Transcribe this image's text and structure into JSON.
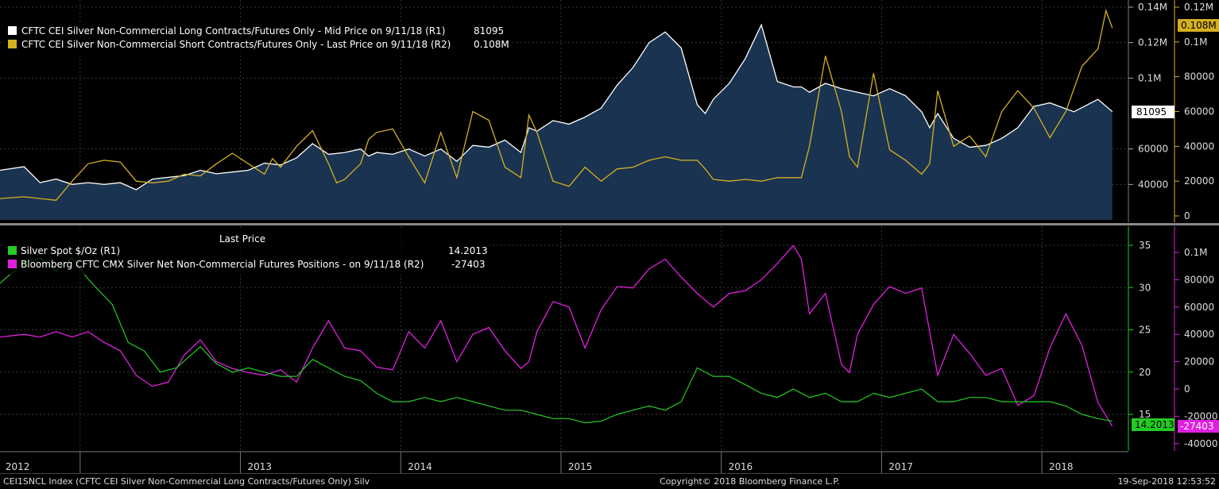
{
  "colors": {
    "background": "#000000",
    "long": "#ffffff",
    "long_fill": "#1a3350",
    "short": "#d4b021",
    "silver": "#22cc22",
    "net": "#e020e0",
    "grid": "#3a3a3a"
  },
  "top_panel": {
    "legend": [
      {
        "text": "CFTC CEI Silver Non-Commercial Long Contracts/Futures Only - Mid Price on 9/11/18 (R1)",
        "value": "81095",
        "color": "#ffffff"
      },
      {
        "text": "CFTC CEI Silver Non-Commercial Short Contracts/Futures Only - Last Price on 9/11/18 (R2)",
        "value": "0.108M",
        "color": "#d4b021"
      }
    ],
    "axis_left_ticks": [
      "0.14M",
      "0.12M",
      "0.1M",
      "60000",
      "40000"
    ],
    "axis_left_values": [
      140000,
      120000,
      100000,
      60000,
      40000
    ],
    "axis_right_ticks": [
      "0.12M",
      "0.1M",
      "80000",
      "60000",
      "40000",
      "20000",
      "0"
    ],
    "axis_right_values": [
      120000,
      100000,
      80000,
      60000,
      40000,
      20000,
      0
    ],
    "badge_long": "81095",
    "badge_short": "0.108M"
  },
  "bottom_panel": {
    "header": "Last Price",
    "legend": [
      {
        "text": "Silver Spot $/Oz  (R1)",
        "value": "14.2013",
        "color": "#22cc22"
      },
      {
        "text": "Bloomberg CFTC CMX Silver Net Non-Commercial Futures Positions -  on 9/11/18  (R2)",
        "value": "-27403",
        "color": "#e020e0"
      }
    ],
    "axis_left_ticks": [
      "35",
      "30",
      "25",
      "20",
      "15"
    ],
    "axis_left_values": [
      35,
      30,
      25,
      20,
      15
    ],
    "axis_right_ticks": [
      "0.1M",
      "80000",
      "60000",
      "40000",
      "20000",
      "0",
      "-20000",
      "-40000"
    ],
    "axis_right_values": [
      100000,
      80000,
      60000,
      40000,
      20000,
      0,
      -20000,
      -40000
    ],
    "badge_silver": "14.2013",
    "badge_net": "-27403"
  },
  "x_axis": {
    "years": [
      "2012",
      "2013",
      "2014",
      "2015",
      "2016",
      "2017",
      "2018"
    ]
  },
  "footer": {
    "left": "CEI1SNCL Index (CFTC CEI Silver Non-Commercial Long Contracts/Futures Only) Silv",
    "center": "Copyright© 2018 Bloomberg Finance L.P.",
    "right": "19-Sep-2018 12:53:52"
  },
  "chart_data": [
    {
      "type": "area",
      "series": [
        {
          "name": "CFTC CEI Silver Non-Commercial Long Contracts/Futures Only - Mid Price on 9/11/18 (R1)",
          "axis": "R1",
          "x": [
            2011.75,
            2011.9,
            2012.0,
            2012.1,
            2012.2,
            2012.3,
            2012.4,
            2012.5,
            2012.6,
            2012.7,
            2012.8,
            2012.9,
            2013.0,
            2013.1,
            2013.2,
            2013.3,
            2013.4,
            2013.5,
            2013.6,
            2013.7,
            2013.8,
            2013.9,
            2014.0,
            2014.05,
            2014.1,
            2014.2,
            2014.3,
            2014.4,
            2014.5,
            2014.6,
            2014.7,
            2014.8,
            2014.9,
            2015.0,
            2015.05,
            2015.1,
            2015.2,
            2015.3,
            2015.4,
            2015.5,
            2015.6,
            2015.7,
            2015.8,
            2015.9,
            2016.0,
            2016.1,
            2016.15,
            2016.2,
            2016.3,
            2016.4,
            2016.5,
            2016.6,
            2016.7,
            2016.75,
            2016.8,
            2016.9,
            2017.0,
            2017.1,
            2017.2,
            2017.3,
            2017.4,
            2017.5,
            2017.55,
            2017.6,
            2017.7,
            2017.8,
            2017.9,
            2018.0,
            2018.1,
            2018.2,
            2018.3,
            2018.45,
            2018.6,
            2018.69
          ],
          "values": [
            48000,
            50000,
            41000,
            43000,
            40000,
            41000,
            40000,
            41000,
            37000,
            43000,
            44000,
            45000,
            48000,
            46000,
            47000,
            48000,
            52000,
            51000,
            55000,
            63000,
            57000,
            58000,
            60000,
            56000,
            58000,
            57000,
            60000,
            56000,
            60000,
            53000,
            62000,
            61000,
            65000,
            58000,
            72000,
            70000,
            76000,
            74000,
            78000,
            83000,
            96000,
            106000,
            120000,
            126000,
            117000,
            85000,
            80000,
            88000,
            97000,
            111000,
            130000,
            98000,
            95000,
            95000,
            92000,
            97000,
            94000,
            92000,
            90000,
            94000,
            90000,
            81000,
            72000,
            80000,
            66000,
            61000,
            62000,
            66000,
            72000,
            84000,
            86000,
            81000,
            88000,
            81095
          ]
        },
        {
          "name": "CFTC CEI Silver Non-Commercial Short Contracts/Futures Only - Last Price on 9/11/18 (R2)",
          "axis": "R2",
          "x": [
            2011.75,
            2011.9,
            2012.0,
            2012.1,
            2012.2,
            2012.3,
            2012.4,
            2012.5,
            2012.6,
            2012.7,
            2012.8,
            2012.9,
            2013.0,
            2013.1,
            2013.2,
            2013.3,
            2013.4,
            2013.45,
            2013.5,
            2013.6,
            2013.7,
            2013.8,
            2013.85,
            2013.9,
            2014.0,
            2014.05,
            2014.1,
            2014.2,
            2014.3,
            2014.4,
            2014.5,
            2014.6,
            2014.7,
            2014.8,
            2014.9,
            2015.0,
            2015.05,
            2015.1,
            2015.2,
            2015.3,
            2015.4,
            2015.5,
            2015.6,
            2015.7,
            2015.8,
            2015.9,
            2016.0,
            2016.1,
            2016.15,
            2016.2,
            2016.3,
            2016.4,
            2016.5,
            2016.6,
            2016.7,
            2016.75,
            2016.8,
            2016.9,
            2017.0,
            2017.05,
            2017.1,
            2017.2,
            2017.3,
            2017.4,
            2017.5,
            2017.55,
            2017.6,
            2017.7,
            2017.8,
            2017.9,
            2018.0,
            2018.1,
            2018.2,
            2018.3,
            2018.4,
            2018.5,
            2018.6,
            2018.65,
            2018.69
          ],
          "values": [
            10000,
            11000,
            10000,
            9000,
            20000,
            30000,
            32000,
            31000,
            20000,
            19000,
            20000,
            24000,
            23000,
            30000,
            36000,
            30000,
            24000,
            33000,
            28000,
            40000,
            49000,
            30000,
            19000,
            21000,
            30000,
            44000,
            48000,
            50000,
            34000,
            19000,
            48000,
            22000,
            60000,
            55000,
            28000,
            22000,
            58000,
            48000,
            20000,
            17000,
            28000,
            20000,
            27000,
            28000,
            32000,
            34000,
            32000,
            32000,
            27000,
            21000,
            20000,
            21000,
            20000,
            22000,
            22000,
            22000,
            40000,
            92000,
            60000,
            34000,
            28000,
            82000,
            38000,
            32000,
            24000,
            30000,
            72000,
            40000,
            46000,
            34000,
            60000,
            72000,
            62000,
            45000,
            60000,
            86000,
            96000,
            118000,
            108000
          ]
        }
      ]
    },
    {
      "type": "line",
      "series": [
        {
          "name": "Silver Spot $/Oz  (R1)",
          "axis": "R1",
          "x": [
            2011.75,
            2011.9,
            2012.0,
            2012.1,
            2012.2,
            2012.3,
            2012.35,
            2012.45,
            2012.55,
            2012.65,
            2012.75,
            2012.85,
            2013.0,
            2013.1,
            2013.2,
            2013.3,
            2013.4,
            2013.5,
            2013.6,
            2013.7,
            2013.8,
            2013.9,
            2014.0,
            2014.1,
            2014.2,
            2014.3,
            2014.4,
            2014.5,
            2014.6,
            2014.7,
            2014.8,
            2014.9,
            2015.0,
            2015.1,
            2015.2,
            2015.3,
            2015.4,
            2015.5,
            2015.6,
            2015.7,
            2015.8,
            2015.9,
            2016.0,
            2016.1,
            2016.2,
            2016.3,
            2016.4,
            2016.5,
            2016.6,
            2016.7,
            2016.8,
            2016.9,
            2017.0,
            2017.1,
            2017.2,
            2017.3,
            2017.4,
            2017.5,
            2017.6,
            2017.7,
            2017.8,
            2017.9,
            2018.0,
            2018.1,
            2018.2,
            2018.3,
            2018.4,
            2018.5,
            2018.6,
            2018.69
          ],
          "values": [
            30.5,
            33.0,
            33.5,
            32.0,
            33.5,
            31.0,
            30.0,
            28.0,
            23.5,
            22.5,
            20.0,
            20.5,
            23.0,
            21.0,
            20.0,
            20.5,
            20.0,
            19.5,
            19.5,
            21.5,
            20.5,
            19.5,
            19.0,
            17.5,
            16.5,
            16.5,
            17.0,
            16.5,
            17.0,
            16.5,
            16.0,
            15.5,
            15.5,
            15.0,
            14.5,
            14.5,
            14.0,
            14.2,
            15.0,
            15.5,
            16.0,
            15.5,
            16.5,
            20.5,
            19.5,
            19.5,
            18.5,
            17.5,
            17.0,
            18.0,
            17.0,
            17.5,
            16.5,
            16.5,
            17.5,
            17.0,
            17.5,
            18.0,
            16.5,
            16.5,
            17.0,
            17.0,
            16.5,
            16.5,
            16.5,
            16.5,
            16.0,
            15.0,
            14.5,
            14.2013
          ]
        },
        {
          "name": "Bloomberg CFTC CMX Silver Net Non-Commercial Futures Positions -  on 9/11/18  (R2)",
          "axis": "R2",
          "x": [
            2011.75,
            2011.9,
            2012.0,
            2012.1,
            2012.2,
            2012.3,
            2012.4,
            2012.5,
            2012.6,
            2012.7,
            2012.8,
            2012.9,
            2013.0,
            2013.1,
            2013.2,
            2013.3,
            2013.4,
            2013.5,
            2013.6,
            2013.7,
            2013.8,
            2013.9,
            2014.0,
            2014.05,
            2014.1,
            2014.2,
            2014.3,
            2014.4,
            2014.5,
            2014.6,
            2014.7,
            2014.8,
            2014.9,
            2015.0,
            2015.05,
            2015.1,
            2015.2,
            2015.3,
            2015.4,
            2015.5,
            2015.6,
            2015.7,
            2015.8,
            2015.9,
            2016.0,
            2016.1,
            2016.2,
            2016.3,
            2016.4,
            2016.5,
            2016.6,
            2016.7,
            2016.75,
            2016.8,
            2016.9,
            2017.0,
            2017.05,
            2017.1,
            2017.2,
            2017.3,
            2017.4,
            2017.5,
            2017.6,
            2017.7,
            2017.8,
            2017.9,
            2018.0,
            2018.1,
            2018.2,
            2018.3,
            2018.4,
            2018.5,
            2018.6,
            2018.69
          ],
          "values": [
            38000,
            40000,
            38000,
            42000,
            38000,
            42000,
            34000,
            28000,
            10000,
            2000,
            5000,
            25000,
            36000,
            20000,
            15000,
            12000,
            10000,
            14000,
            5000,
            30000,
            50000,
            30000,
            28000,
            22000,
            16000,
            14000,
            42000,
            30000,
            50000,
            20000,
            40000,
            45000,
            28000,
            15000,
            20000,
            42000,
            64000,
            60000,
            30000,
            58000,
            75000,
            74000,
            88000,
            95000,
            82000,
            70000,
            60000,
            70000,
            72000,
            80000,
            92000,
            105000,
            95000,
            55000,
            70000,
            18000,
            12000,
            40000,
            62000,
            75000,
            70000,
            74000,
            10000,
            40000,
            26000,
            10000,
            15000,
            -12000,
            -5000,
            30000,
            55000,
            32000,
            -10000,
            -27403
          ]
        }
      ]
    }
  ]
}
